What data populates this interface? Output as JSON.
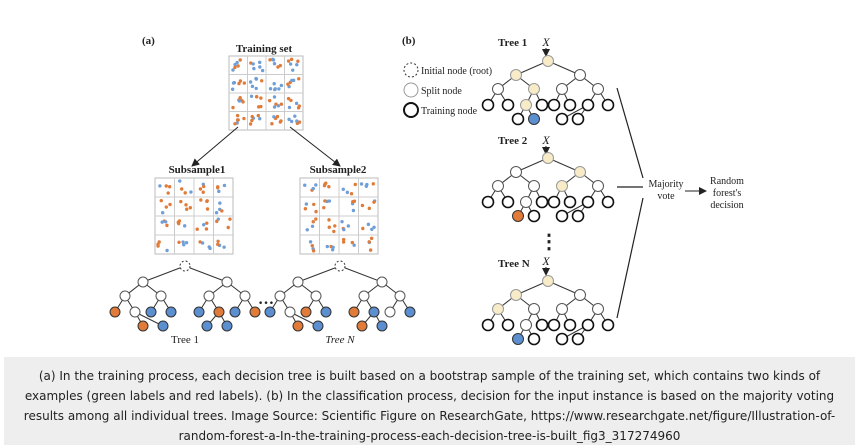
{
  "colors": {
    "orange": "#e07b39",
    "blue": "#6f9fd8",
    "blue_node": "#5b8fcf",
    "cream": "#f7ebc8",
    "line": "#222222",
    "caption_bg": "#eeeeee"
  },
  "panel_a": {
    "label": "(a)",
    "training_set_title": "Training set",
    "subsample1_title": "Subsample1",
    "subsample2_title": "Subsample2",
    "ellipsis": "…",
    "tree1_label": "Tree 1",
    "treeN_label": "Tree N"
  },
  "panel_b": {
    "label": "(b)",
    "tree1_label": "Tree 1",
    "tree2_label": "Tree 2",
    "treeN_label": "Tree N",
    "input_symbol": "X",
    "vdots": "⋮",
    "legend": {
      "initial_node": "Initial node (root)",
      "split_node": "Split node",
      "training_node": "Training node"
    },
    "majority_vote_line1": "Majority",
    "majority_vote_line2": "vote",
    "decision_line1": "Random",
    "decision_line2": "forest's",
    "decision_line3": "decision"
  },
  "caption": {
    "text": "(a) In the training process, each decision tree is built based on a bootstrap sample of the training set, which contains two kinds of examples (green labels and red labels). (b) In the classification process, decision for the input instance is based on the majority voting results among all individual trees. Image Source: Scientific Figure on ResearchGate, https://www.researchgate.net/figure/Illustration-of-random-forest-a-In-the-training-process-each-decision-tree-is-built_fig3_317274960"
  }
}
